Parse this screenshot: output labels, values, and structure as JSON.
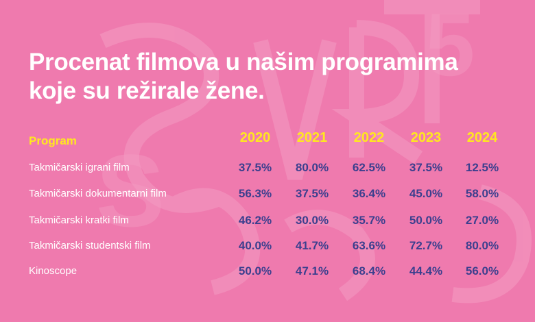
{
  "title": "Procenat filmova u našim programima koje su režirale žene.",
  "colors": {
    "background": "#ef7aae",
    "title": "#ffffff",
    "header": "#ffe81f",
    "value": "#3b3f8e"
  },
  "chart_data": {
    "type": "table",
    "title": "Procenat filmova u našim programima koje su režirale žene.",
    "row_header": "Program",
    "columns": [
      "2020",
      "2021",
      "2022",
      "2023",
      "2024"
    ],
    "rows": [
      {
        "label": "Takmičarski igrani film",
        "values": [
          "37.5%",
          "80.0%",
          "62.5%",
          "37.5%",
          "12.5%"
        ]
      },
      {
        "label": "Takmičarski dokumentarni film",
        "values": [
          "56.3%",
          "37.5%",
          "36.4%",
          "45.0%",
          "58.0%"
        ]
      },
      {
        "label": "Takmičarski kratki film",
        "values": [
          "46.2%",
          "30.0%",
          "35.7%",
          "50.0%",
          "27.0%"
        ]
      },
      {
        "label": "Takmičarski studentski film",
        "values": [
          "40.0%",
          "41.7%",
          "63.6%",
          "72.7%",
          "80.0%"
        ]
      },
      {
        "label": "Kinoscope",
        "values": [
          "50.0%",
          "47.1%",
          "68.4%",
          "44.4%",
          "56.0%"
        ]
      }
    ]
  }
}
